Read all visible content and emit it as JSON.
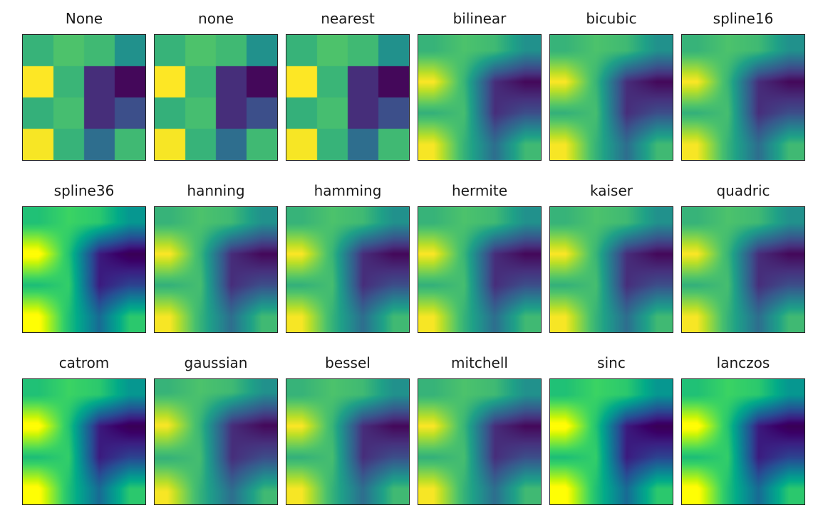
{
  "figure": {
    "background_color": "#ffffff",
    "text_color": "#1a1a1a",
    "spine_color": "#232323"
  },
  "chart_data": {
    "type": "heatmap",
    "title": "",
    "colormap": "viridis",
    "grid_shape": [
      4,
      4
    ],
    "value_range": [
      0,
      1
    ],
    "axes_ticks": "none",
    "grid": "off",
    "legend": "none",
    "layout": {
      "nrows": 3,
      "ncols": 6
    },
    "values": [
      [
        0.65,
        0.72,
        0.68,
        0.5
      ],
      [
        1.0,
        0.66,
        0.13,
        0.02
      ],
      [
        0.64,
        0.7,
        0.13,
        0.24
      ],
      [
        0.99,
        0.65,
        0.36,
        0.68
      ]
    ],
    "cell_colors": [
      [
        "#33b67c",
        "#4ac16d",
        "#3dbc74",
        "#23918d"
      ],
      [
        "#fde725",
        "#38b977",
        "#472d7b",
        "#45065a"
      ],
      [
        "#33b57c",
        "#44bf70",
        "#462d7c",
        "#3d4e8a"
      ],
      [
        "#fbe723",
        "#34b67c",
        "#2c708e",
        "#3cbb75"
      ]
    ],
    "colormap_anchors": [
      [
        0.0,
        "#440154"
      ],
      [
        0.143,
        "#46327e"
      ],
      [
        0.25,
        "#3b528b"
      ],
      [
        0.286,
        "#365c8d"
      ],
      [
        0.429,
        "#277f8e"
      ],
      [
        0.5,
        "#21918c"
      ],
      [
        0.571,
        "#1fa187"
      ],
      [
        0.714,
        "#4ac16d"
      ],
      [
        0.75,
        "#5ec962"
      ],
      [
        0.857,
        "#a0da39"
      ],
      [
        0.9,
        "#bddf26"
      ],
      [
        1.0,
        "#fde725"
      ]
    ],
    "panels": [
      {
        "label": "None",
        "render": "pixelated"
      },
      {
        "label": "none",
        "render": "pixelated"
      },
      {
        "label": "nearest",
        "render": "pixelated"
      },
      {
        "label": "bilinear",
        "render": "smooth"
      },
      {
        "label": "bicubic",
        "render": "smooth"
      },
      {
        "label": "spline16",
        "render": "smooth"
      },
      {
        "label": "spline36",
        "render": "smooth-sharp"
      },
      {
        "label": "hanning",
        "render": "smooth"
      },
      {
        "label": "hamming",
        "render": "smooth"
      },
      {
        "label": "hermite",
        "render": "smooth"
      },
      {
        "label": "kaiser",
        "render": "smooth"
      },
      {
        "label": "quadric",
        "render": "smooth"
      },
      {
        "label": "catrom",
        "render": "smooth-sharp"
      },
      {
        "label": "gaussian",
        "render": "smooth-soft"
      },
      {
        "label": "bessel",
        "render": "smooth"
      },
      {
        "label": "mitchell",
        "render": "smooth"
      },
      {
        "label": "sinc",
        "render": "smooth-sharp"
      },
      {
        "label": "lanczos",
        "render": "smooth-sharp"
      }
    ]
  }
}
